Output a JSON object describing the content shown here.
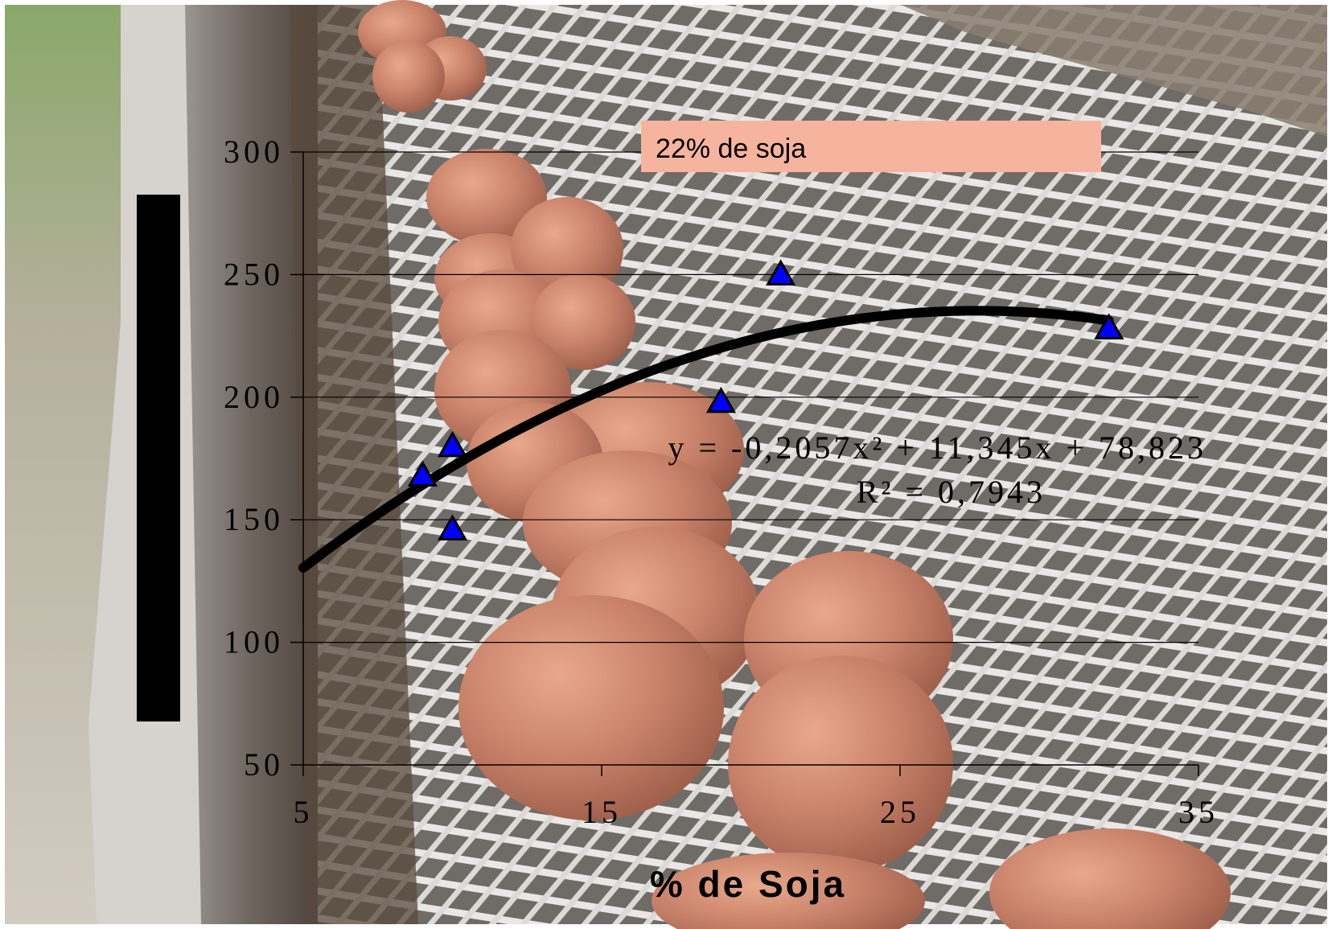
{
  "chart_data": {
    "type": "scatter",
    "xlabel": "% de Soja",
    "ylabel": "",
    "xlim": [
      5,
      35
    ],
    "ylim": [
      50,
      300
    ],
    "x_ticks": [
      "5",
      "15",
      "25",
      "35"
    ],
    "y_ticks": [
      "50",
      "100",
      "150",
      "200",
      "250",
      "300"
    ],
    "grid": true,
    "series": [
      {
        "marker": "triangle",
        "color": "#0000ff",
        "points": [
          {
            "x": 9,
            "y": 168
          },
          {
            "x": 10,
            "y": 180
          },
          {
            "x": 10,
            "y": 146
          },
          {
            "x": 19,
            "y": 198
          },
          {
            "x": 21,
            "y": 250
          },
          {
            "x": 32,
            "y": 228
          }
        ]
      }
    ],
    "trendline": {
      "type": "polynomial",
      "degree": 2,
      "coefficients": [
        -0.2057,
        11.345,
        78.823
      ],
      "x_range": [
        5,
        32
      ],
      "equation": "y = -0,2057x² + 11,345x + 78,823",
      "r2_label": "R² = 0,7943",
      "color": "#000000"
    },
    "annotation": {
      "text": "22% de soja",
      "background": "#f6b49f"
    }
  },
  "colors": {
    "grid": "#000000",
    "marker_fill": "#0000ff",
    "trend": "#000000",
    "ylabel_box": "#000000"
  }
}
